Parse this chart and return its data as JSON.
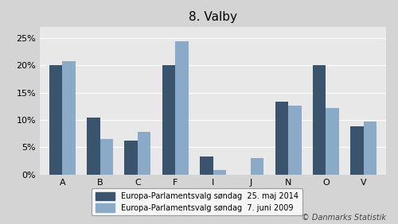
{
  "title": "8. Valby",
  "categories": [
    "A",
    "B",
    "C",
    "F",
    "I",
    "J",
    "N",
    "O",
    "V"
  ],
  "series_2014": [
    20.0,
    10.5,
    6.2,
    20.0,
    3.3,
    0.0,
    13.4,
    20.0,
    8.8
  ],
  "series_2009": [
    20.8,
    6.5,
    7.9,
    24.3,
    0.9,
    3.0,
    12.6,
    12.2,
    9.7
  ],
  "color_2014": "#3a546e",
  "color_2009": "#8aaac8",
  "legend_2014": "Europa-Parlamentsvalg søndag  25. maj 2014",
  "legend_2009": "Europa-Parlamentsvalg søndag  7. juni 2009",
  "ylabel_ticks": [
    "0%",
    "5%",
    "10%",
    "15%",
    "20%",
    "25%"
  ],
  "ylim": [
    0,
    27
  ],
  "yticks": [
    0,
    5,
    10,
    15,
    20,
    25
  ],
  "background_color": "#d4d4d4",
  "plot_bg_color": "#e8e8e8",
  "copyright_text": "© Danmarks Statistik",
  "bar_width": 0.35,
  "title_fontsize": 11
}
